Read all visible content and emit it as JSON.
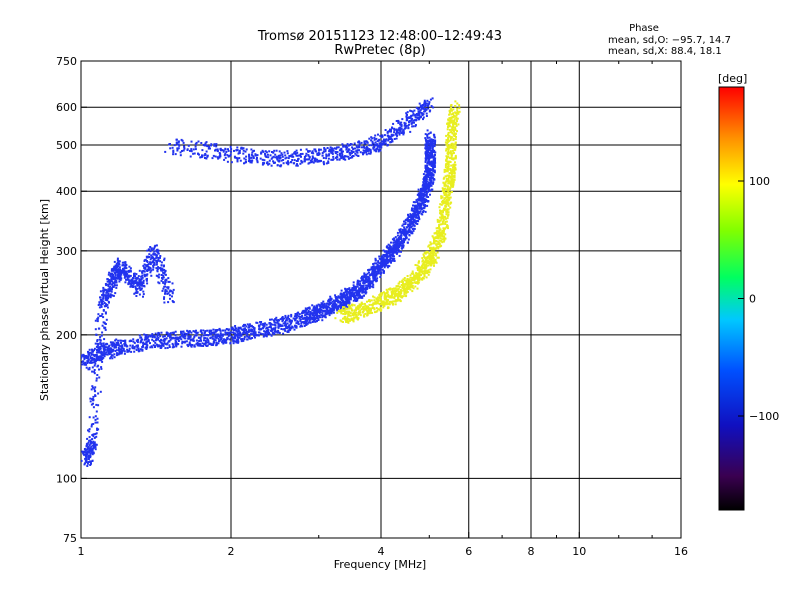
{
  "chart_data": {
    "type": "scatter",
    "title": "Tromsø 20151123 12:48:00–12:49:43",
    "subtitle": "RwPretec (8p)",
    "xlabel": "Frequency [MHz]",
    "ylabel": "Stationary phase Virtual Height [km]",
    "xscale": "log",
    "yscale": "log",
    "xlim": [
      1,
      16
    ],
    "ylim": [
      75,
      750
    ],
    "x_ticks": [
      1,
      2,
      4,
      6,
      8,
      10,
      16
    ],
    "x_tick_labels": [
      "1",
      "2",
      "4",
      "6",
      "8",
      "10",
      "16"
    ],
    "y_ticks": [
      75,
      100,
      200,
      300,
      400,
      500,
      600,
      750
    ],
    "y_tick_labels": [
      "75",
      "100",
      "200",
      "300",
      "400",
      "500",
      "600",
      "750"
    ],
    "grid": true,
    "phase_legend": {
      "title": "Phase",
      "line_o": "mean, sd,O: −95.7, 14.7",
      "line_x": "mean, sd,X:  88.4, 18.1"
    },
    "colorbar": {
      "label": "[deg]",
      "range": [
        -180,
        180
      ],
      "ticks": [
        100,
        0,
        -100
      ],
      "tick_labels": [
        "100",
        "0",
        "−100"
      ],
      "colors": [
        "#000000",
        "#3a0050",
        "#0000ff",
        "#00b4ff",
        "#00ff80",
        "#00ff00",
        "#c0ff00",
        "#ffff00",
        "#ff8000",
        "#ff0000"
      ]
    },
    "series": [
      {
        "name": "O-mode trace (blue, ~−96°)",
        "color": "#2233ee",
        "x": [
          1.0,
          1.1,
          1.2,
          1.4,
          1.6,
          1.8,
          2.0,
          2.2,
          2.5,
          2.8,
          3.0,
          3.2,
          3.4,
          3.6,
          3.8,
          4.0,
          4.2,
          4.4,
          4.6,
          4.8,
          4.9,
          5.0,
          5.0,
          5.0
        ],
        "y": [
          175,
          185,
          190,
          195,
          197,
          198,
          200,
          205,
          210,
          218,
          225,
          232,
          240,
          250,
          265,
          285,
          300,
          320,
          350,
          380,
          410,
          440,
          480,
          520
        ]
      },
      {
        "name": "X-mode trace (yellow, ~88°)",
        "color": "#e8ee20",
        "x": [
          3.3,
          3.6,
          4.0,
          4.3,
          4.6,
          4.9,
          5.1,
          5.3,
          5.4,
          5.5,
          5.5,
          5.6
        ],
        "y": [
          220,
          225,
          235,
          245,
          260,
          280,
          300,
          340,
          400,
          450,
          520,
          600
        ]
      },
      {
        "name": "Upper band (blue)",
        "color": "#2233ee",
        "x": [
          1.5,
          2.0,
          2.5,
          3.0,
          3.5,
          4.0,
          4.5,
          5.0
        ],
        "y": [
          500,
          480,
          470,
          475,
          490,
          510,
          560,
          610
        ]
      },
      {
        "name": "Low frequency echoes (blue)",
        "color": "#2233ee",
        "x": [
          1.02,
          1.05,
          1.1,
          1.15,
          1.2,
          1.3,
          1.4,
          1.5
        ],
        "y": [
          110,
          120,
          230,
          260,
          280,
          250,
          300,
          240
        ]
      }
    ]
  }
}
